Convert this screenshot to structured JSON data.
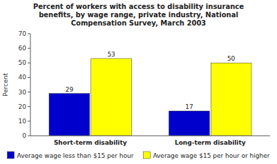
{
  "chart_data": {
    "type": "bar",
    "title": "Percent of workers with access to disability insurance\nbenefits, by wage range, private industry, National\nCompensation Survey, March 2003",
    "categories": [
      "Short-term disability",
      "Long-term disability"
    ],
    "series": [
      {
        "name": "Average wage less than $15 per hour",
        "color": "#0000CC",
        "values": [
          29,
          17
        ]
      },
      {
        "name": "Average wage $15 per hour or higher",
        "color": "#FFFF00",
        "values": [
          53,
          50
        ]
      }
    ],
    "ylabel": "Percent",
    "ylim": [
      0,
      70
    ],
    "yticks": [
      0,
      10,
      20,
      30,
      40,
      50,
      60,
      70
    ],
    "data_labels": true,
    "grid": false,
    "legend": "bottom"
  }
}
